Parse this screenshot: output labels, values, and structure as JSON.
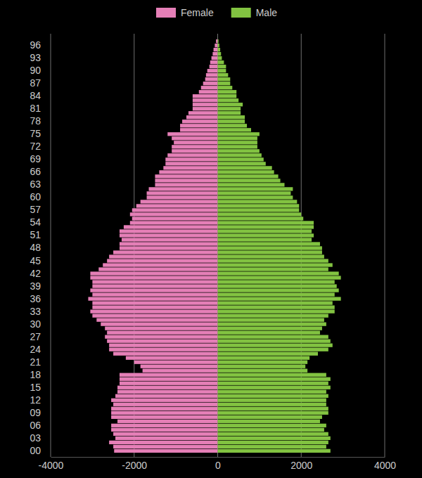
{
  "chart_data": {
    "type": "bar",
    "orientation": "horizontal",
    "grid": true,
    "legend": "top",
    "categories": [
      "00",
      null,
      null,
      "03",
      null,
      null,
      "06",
      null,
      null,
      "09",
      null,
      null,
      "12",
      null,
      null,
      "15",
      null,
      null,
      "18",
      null,
      null,
      "21",
      null,
      null,
      "24",
      null,
      null,
      "27",
      null,
      null,
      "30",
      null,
      null,
      "33",
      null,
      null,
      "36",
      null,
      null,
      "39",
      null,
      null,
      "42",
      null,
      null,
      "45",
      null,
      null,
      "48",
      null,
      null,
      "51",
      null,
      null,
      "54",
      null,
      null,
      "57",
      null,
      null,
      "60",
      null,
      null,
      "63",
      null,
      null,
      "66",
      null,
      null,
      "69",
      null,
      null,
      "72",
      null,
      null,
      "75",
      null,
      null,
      "78",
      null,
      null,
      "81",
      null,
      null,
      "84",
      null,
      null,
      "87",
      null,
      null,
      "90",
      null,
      null,
      "93",
      null,
      null,
      "96",
      null
    ],
    "xlim": [
      -4000,
      4000
    ],
    "xticks": [
      -4000,
      -2000,
      0,
      2000,
      4000
    ],
    "series": [
      {
        "name": "Female",
        "color": "#e57fb7",
        "values": [
          -2480,
          -2500,
          -2600,
          -2450,
          -2500,
          -2550,
          -2550,
          -2400,
          -2550,
          -2550,
          -2550,
          -2500,
          -2550,
          -2450,
          -2400,
          -2400,
          -2350,
          -2350,
          -2350,
          -1800,
          -1850,
          -2000,
          -2200,
          -2500,
          -2600,
          -2600,
          -2650,
          -2700,
          -2650,
          -2700,
          -2800,
          -2900,
          -3000,
          -3050,
          -3000,
          -3000,
          -3100,
          -3000,
          -3050,
          -3000,
          -3000,
          -3050,
          -3050,
          -2850,
          -2750,
          -2650,
          -2600,
          -2500,
          -2350,
          -2350,
          -2300,
          -2350,
          -2350,
          -2250,
          -2100,
          -2050,
          -2100,
          -2050,
          -1950,
          -1850,
          -1700,
          -1700,
          -1650,
          -1500,
          -1500,
          -1500,
          -1400,
          -1300,
          -1250,
          -1250,
          -1200,
          -1100,
          -1100,
          -1050,
          -1100,
          -1200,
          -900,
          -900,
          -850,
          -750,
          -700,
          -600,
          -600,
          -600,
          -600,
          -450,
          -400,
          -350,
          -300,
          -280,
          -250,
          -200,
          -180,
          -150,
          -120,
          -100,
          -70,
          -40
        ]
      },
      {
        "name": "Male",
        "color": "#82c341",
        "values": [
          2700,
          2600,
          2650,
          2700,
          2650,
          2550,
          2600,
          2450,
          2500,
          2650,
          2650,
          2600,
          2600,
          2650,
          2600,
          2700,
          2650,
          2700,
          2600,
          2150,
          2100,
          2150,
          2200,
          2400,
          2650,
          2750,
          2700,
          2650,
          2450,
          2500,
          2600,
          2550,
          2650,
          2800,
          2800,
          2750,
          2950,
          2800,
          2900,
          2850,
          2800,
          2950,
          2900,
          2650,
          2750,
          2650,
          2550,
          2500,
          2500,
          2450,
          2250,
          2300,
          2250,
          2300,
          2300,
          2050,
          2000,
          1950,
          1950,
          1900,
          1800,
          1750,
          1800,
          1600,
          1500,
          1450,
          1350,
          1300,
          1150,
          1100,
          1050,
          1000,
          950,
          950,
          950,
          1000,
          800,
          700,
          650,
          650,
          550,
          550,
          600,
          500,
          450,
          450,
          350,
          300,
          300,
          250,
          200,
          200,
          150,
          100,
          80,
          60,
          40,
          20
        ]
      }
    ]
  }
}
